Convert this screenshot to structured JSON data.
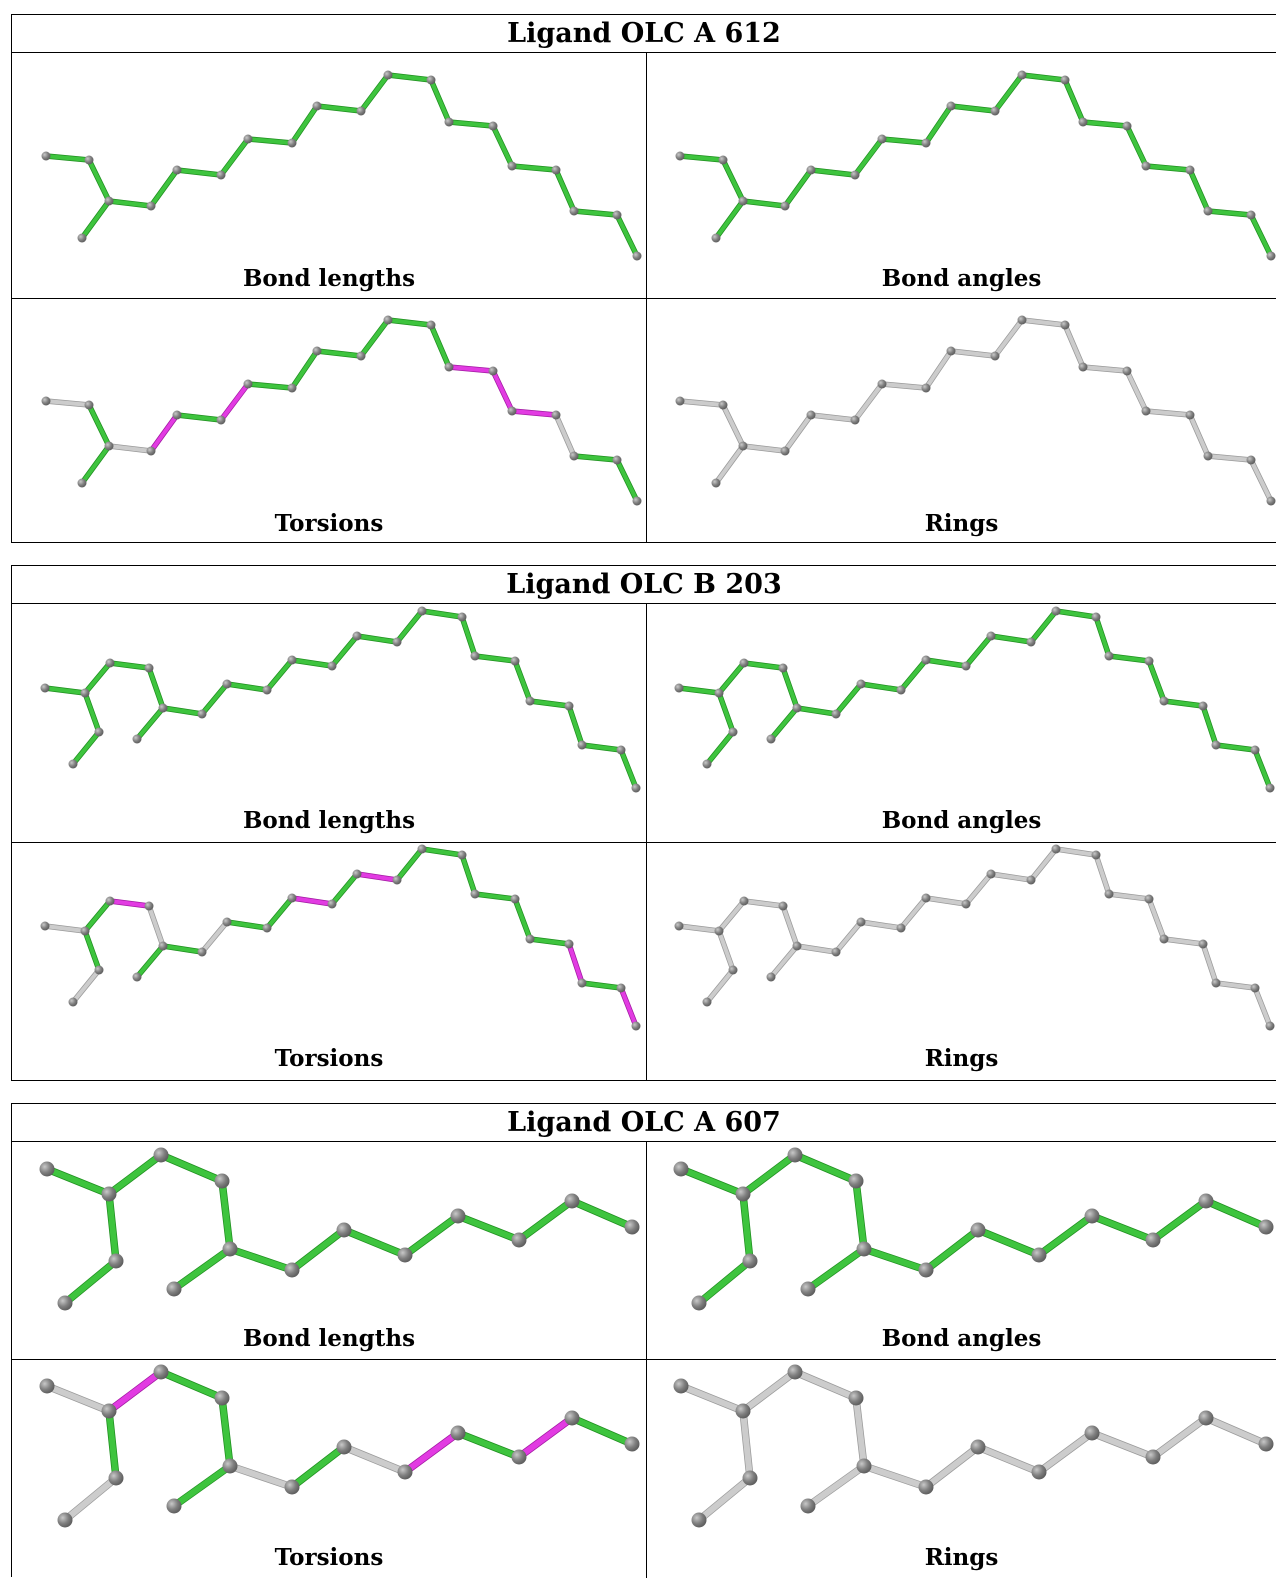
{
  "colors": {
    "ok_bond": "#3ec43e",
    "ok_bond_dark": "#1f8f1f",
    "outlier_bond": "#e23be2",
    "outlier_bond_dark": "#a11aa1",
    "neutral_bond": "#cccccc",
    "neutral_bond_dark": "#9a9a9a",
    "atom": "#808080",
    "atom_dark": "#5a5a5a"
  },
  "panel_labels": {
    "bond_lengths": "Bond lengths",
    "bond_angles": "Bond angles",
    "torsions": "Torsions",
    "rings": "Rings"
  },
  "ligands": [
    {
      "title": "Ligand OLC A 612",
      "bond_highlights": {
        "bond_lengths": "all-ok",
        "bond_angles": "all-ok",
        "torsions": {
          "outliers": [
            3,
            5,
            12,
            13,
            14
          ],
          "neutral": [
            0,
            2,
            15
          ]
        },
        "rings": "none"
      }
    },
    {
      "title": "Ligand OLC B 203",
      "bond_highlights": {
        "bond_lengths": "all-ok",
        "bond_angles": "all-ok",
        "torsions": {
          "outliers": [
            2,
            8,
            10,
            17,
            19
          ],
          "neutral": [
            0,
            3,
            5,
            21
          ]
        },
        "rings": "none"
      }
    },
    {
      "title": "Ligand OLC A 607",
      "bond_highlights": {
        "bond_lengths": "all-ok",
        "bond_angles": "all-ok",
        "torsions": {
          "outliers": [
            1,
            7,
            9
          ],
          "neutral": [
            0,
            4,
            6,
            12
          ]
        },
        "rings": "none"
      }
    }
  ]
}
